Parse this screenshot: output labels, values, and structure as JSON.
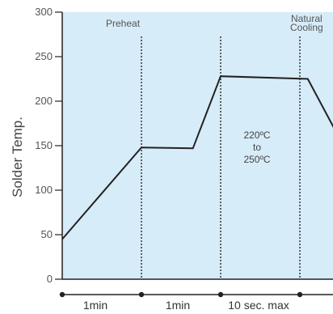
{
  "chart_data": {
    "type": "line",
    "ylabel": "Solder Temp.",
    "xlabel": "",
    "ylim": [
      0,
      300
    ],
    "yticks": [
      "0",
      "50",
      "100",
      "150",
      "200",
      "250",
      "300"
    ],
    "grid": false,
    "background_color": "#d6ecf8",
    "line_color": "#222222",
    "series": [
      {
        "x": [
          0,
          1,
          1.65,
          2,
          3.1,
          3.55
        ],
        "y": [
          45,
          148,
          147,
          228,
          225,
          150
        ]
      }
    ],
    "phase_markers": [
      1,
      2,
      3
    ],
    "phase_labels": [
      "Preheat",
      "Natural",
      "Cooling"
    ],
    "annotation": [
      "220ºC",
      "to",
      "250ºC"
    ],
    "durations": [
      "1min",
      "1min",
      "10 sec. max"
    ]
  }
}
